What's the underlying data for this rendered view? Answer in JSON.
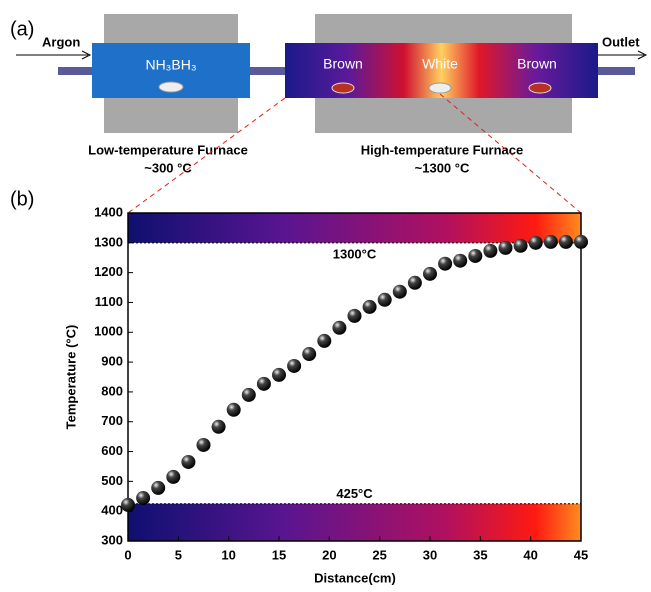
{
  "diagram": {
    "panel_label": "(a)",
    "inlet": "Argon",
    "outlet": "Outlet",
    "precursor": "NH₃BH₃",
    "zones": [
      "Brown",
      "White",
      "Brown"
    ],
    "low_furnace": {
      "name": "Low-temperature Furnace",
      "temperature": "~300 °C"
    },
    "high_furnace": {
      "name": "High-temperature Furnace",
      "temperature": "~1300 °C"
    }
  },
  "chart_data": {
    "type": "scatter",
    "panel_label": "(b)",
    "x_label": "Distance(cm)",
    "y_label": "Temperature (°C)",
    "x": [
      0,
      1.5,
      3,
      4.5,
      6,
      7.5,
      9,
      10.5,
      12,
      13.5,
      15,
      16.5,
      18,
      19.5,
      21,
      22.5,
      24,
      25.5,
      27,
      28.5,
      30,
      31.5,
      33,
      34.5,
      36,
      37.5,
      39,
      40.5,
      42,
      43.5,
      45
    ],
    "values": [
      421,
      444,
      478,
      515,
      565,
      622,
      683,
      740,
      790,
      827,
      857,
      887,
      927,
      971,
      1015,
      1055,
      1085,
      1109,
      1136,
      1166,
      1196,
      1230,
      1240,
      1256,
      1273,
      1283,
      1290,
      1300,
      1303,
      1303,
      1303
    ],
    "xlim": [
      0,
      45
    ],
    "xticks": [
      0,
      5,
      10,
      15,
      20,
      25,
      30,
      35,
      40,
      45
    ],
    "ylim": [
      300,
      1400
    ],
    "yticks": [
      300,
      400,
      500,
      600,
      700,
      800,
      900,
      1000,
      1100,
      1200,
      1300,
      1400
    ],
    "reference_lines": [
      {
        "value": 1300,
        "label": "1300°C"
      },
      {
        "value": 425,
        "label": "425°C"
      }
    ]
  }
}
